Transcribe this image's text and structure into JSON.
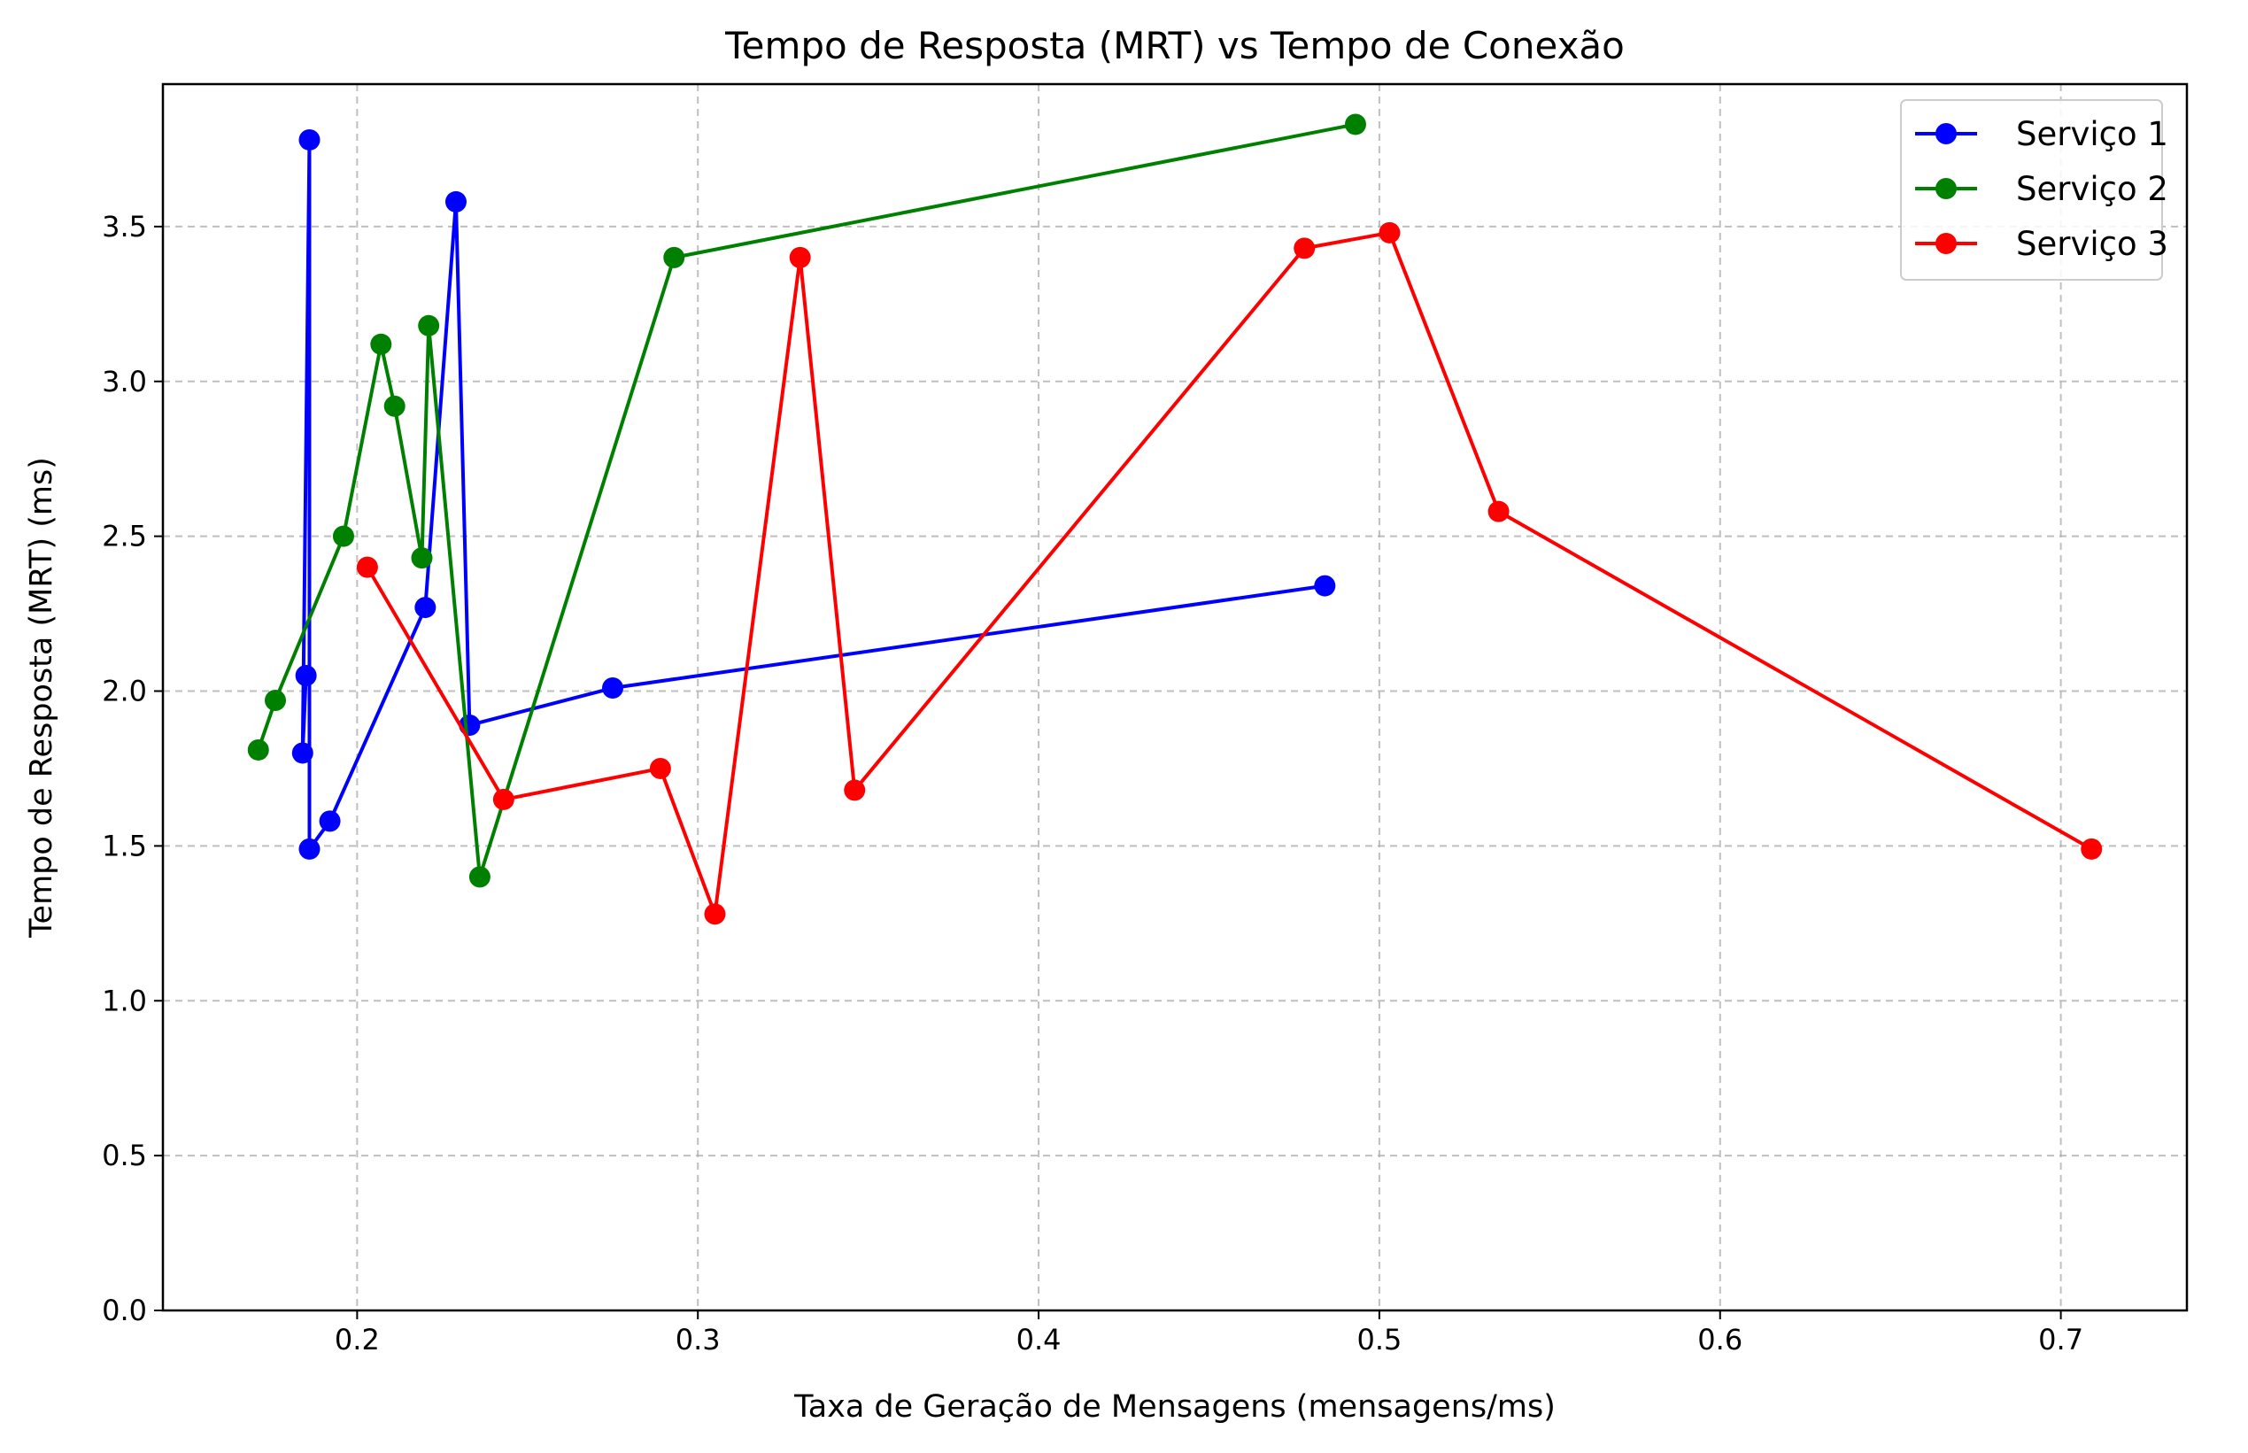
{
  "chart_data": {
    "type": "line",
    "title": "Tempo de Resposta (MRT) vs Tempo de Conexão",
    "xlabel": "Taxa de Geração de Mensagens (mensagens/ms)",
    "ylabel": "Tempo de Resposta (MRT) (ms)",
    "xlim": [
      0.143,
      0.737
    ],
    "ylim": [
      0,
      3.96
    ],
    "xticks": [
      0.2,
      0.3,
      0.4,
      0.5,
      0.6,
      0.7
    ],
    "xtick_labels": [
      "0.2",
      "0.3",
      "0.4",
      "0.5",
      "0.6",
      "0.7"
    ],
    "yticks": [
      0.0,
      0.5,
      1.0,
      1.5,
      2.0,
      2.5,
      3.0,
      3.5
    ],
    "ytick_labels": [
      "0.0",
      "0.5",
      "1.0",
      "1.5",
      "2.0",
      "2.5",
      "3.0",
      "3.5"
    ],
    "grid": true,
    "legend_position": "top-right",
    "series": [
      {
        "name": "Serviço 1",
        "color": "#0000ff",
        "x": [
          0.185,
          0.184,
          0.186,
          0.186,
          0.192,
          0.22,
          0.229,
          0.233,
          0.275,
          0.484
        ],
        "y": [
          2.05,
          1.8,
          3.78,
          1.49,
          1.58,
          2.27,
          3.58,
          1.89,
          2.01,
          2.34
        ]
      },
      {
        "name": "Serviço 2",
        "color": "#008000",
        "x": [
          0.171,
          0.176,
          0.196,
          0.207,
          0.211,
          0.219,
          0.221,
          0.236,
          0.293,
          0.493
        ],
        "y": [
          1.81,
          1.97,
          2.5,
          3.12,
          2.92,
          2.43,
          3.18,
          1.4,
          3.4,
          3.83
        ]
      },
      {
        "name": "Serviço 3",
        "color": "#ff0000",
        "x": [
          0.203,
          0.243,
          0.289,
          0.305,
          0.33,
          0.346,
          0.478,
          0.503,
          0.535,
          0.709
        ],
        "y": [
          2.4,
          1.65,
          1.75,
          1.28,
          3.4,
          1.68,
          3.43,
          3.48,
          2.58,
          1.49
        ]
      }
    ]
  }
}
